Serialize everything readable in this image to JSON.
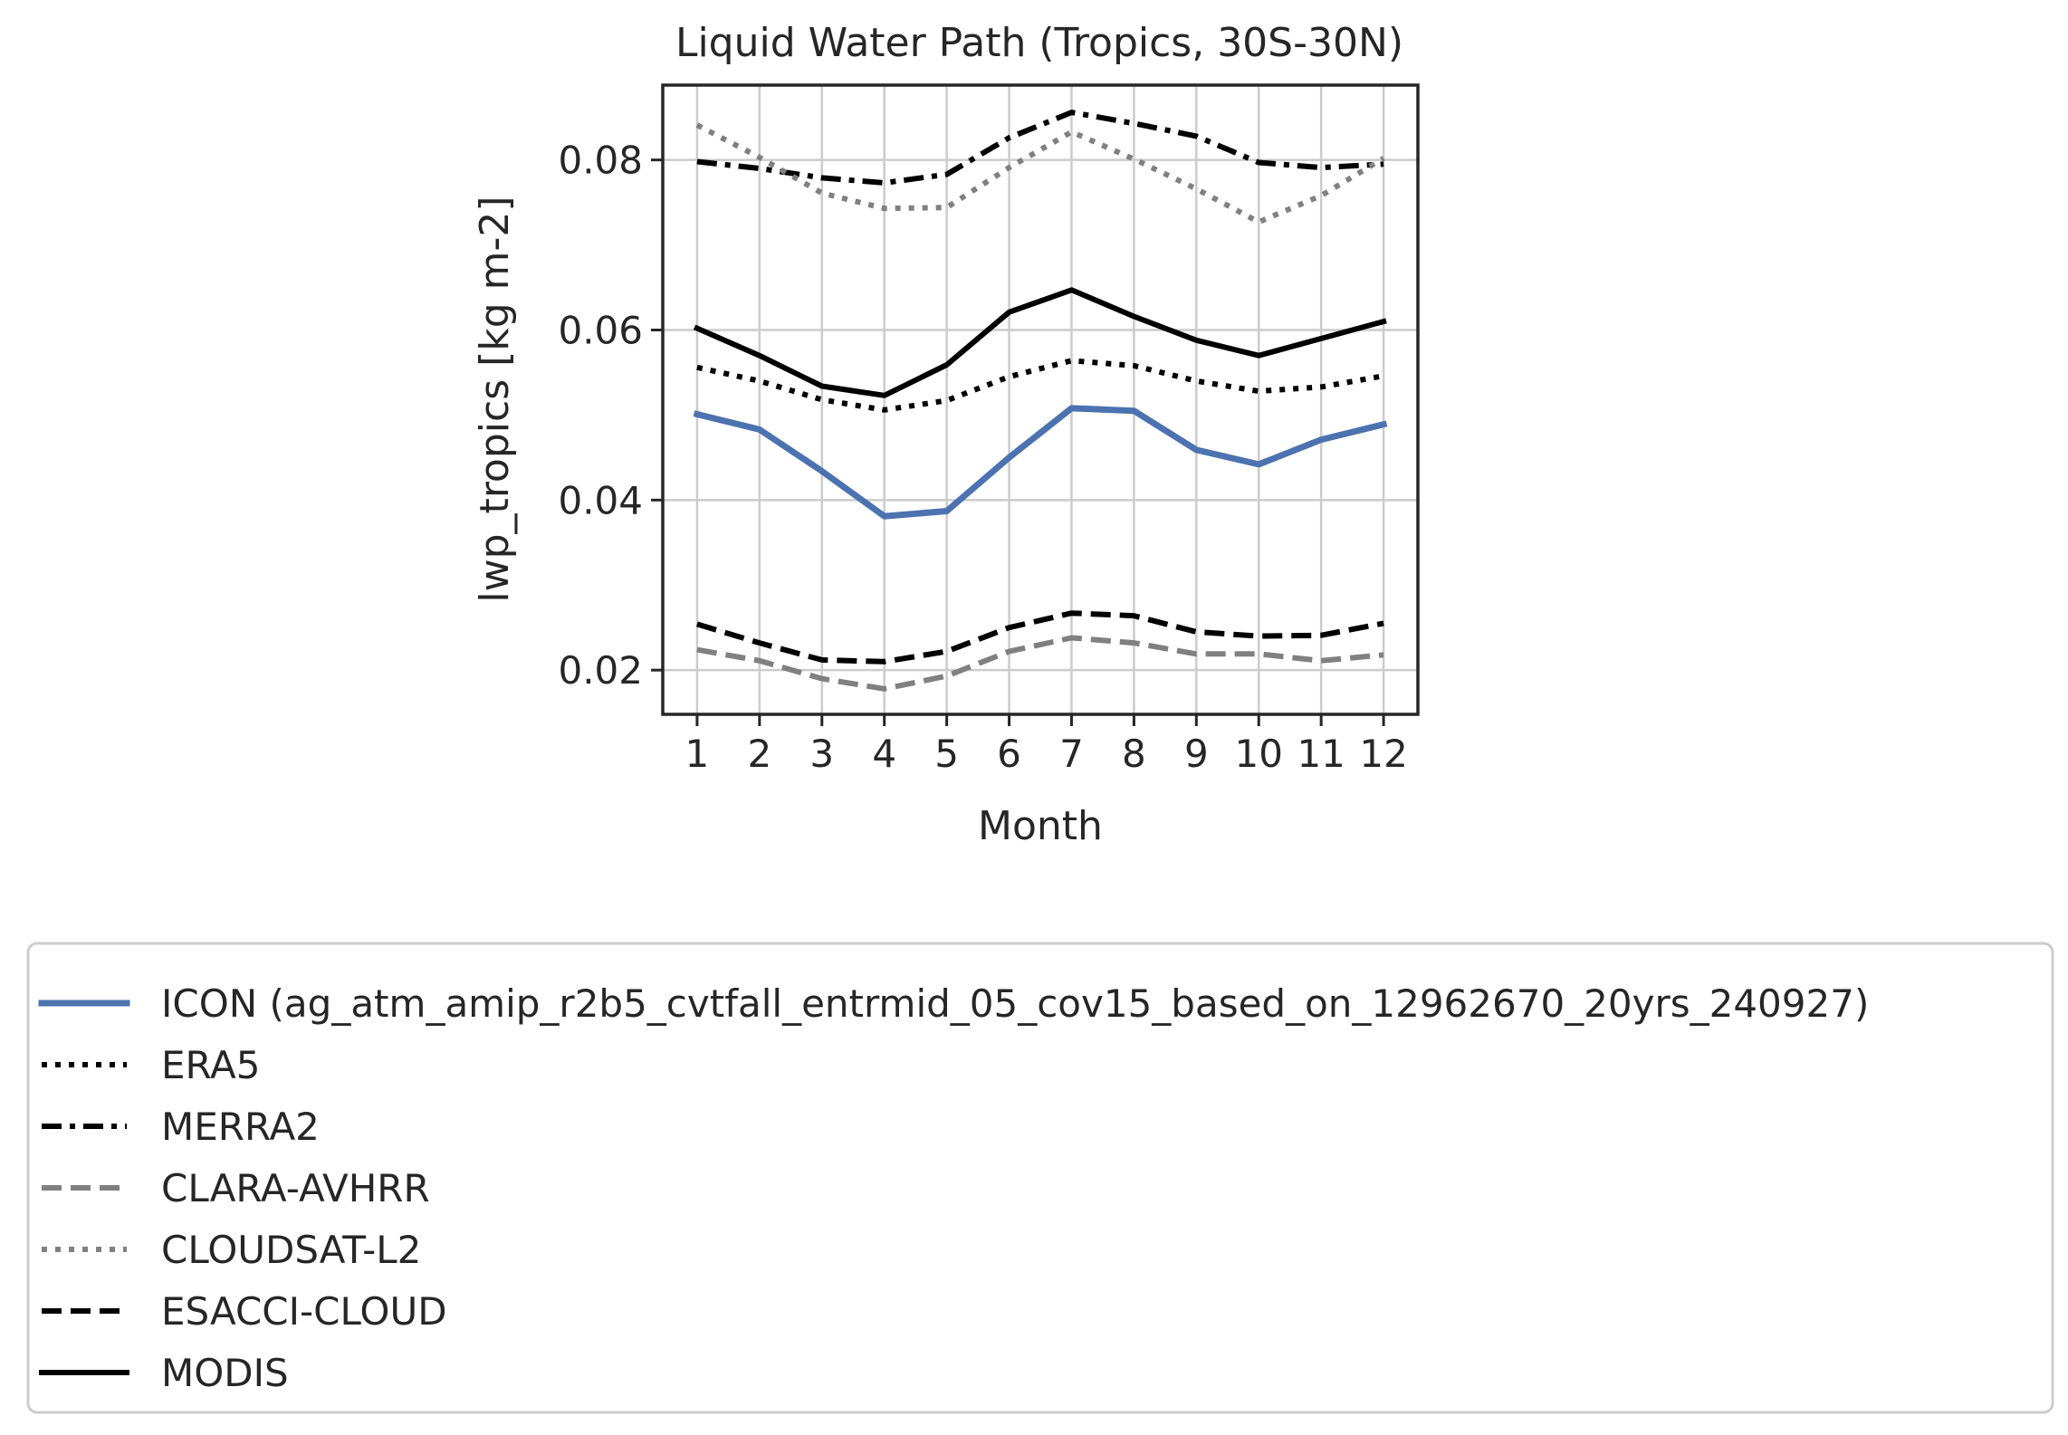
{
  "chart_data": {
    "type": "line",
    "title": "Liquid Water Path (Tropics, 30S-30N)",
    "xlabel": "Month",
    "ylabel": "lwp_tropics [kg m-2]",
    "x": [
      1,
      2,
      3,
      4,
      5,
      6,
      7,
      8,
      9,
      10,
      11,
      12
    ],
    "xticks": [
      "1",
      "2",
      "3",
      "4",
      "5",
      "6",
      "7",
      "8",
      "9",
      "10",
      "11",
      "12"
    ],
    "yticks": [
      "0.02",
      "0.04",
      "0.06",
      "0.08"
    ],
    "ytick_values": [
      0.02,
      0.04,
      0.06,
      0.08
    ],
    "xlim": [
      0.45,
      12.55
    ],
    "ylim": [
      0.0148,
      0.0888
    ],
    "grid": true,
    "legend_position": "bottom",
    "series": [
      {
        "name": "ICON (ag_atm_amip_r2b5_cvtfall_entrmid_05_cov15_based_on_12962670_20yrs_240927)",
        "color": "#4c72b0",
        "style": "solid-thick",
        "values": [
          0.0501,
          0.0483,
          0.0434,
          0.0381,
          0.0387,
          0.045,
          0.0508,
          0.0505,
          0.0459,
          0.0442,
          0.0471,
          0.0489
        ]
      },
      {
        "name": "ERA5",
        "color": "#000000",
        "style": "dotted",
        "values": [
          0.0556,
          0.054,
          0.0518,
          0.0506,
          0.0517,
          0.0545,
          0.0564,
          0.0558,
          0.054,
          0.0528,
          0.0533,
          0.0546
        ]
      },
      {
        "name": "MERRA2",
        "color": "#000000",
        "style": "dashdot",
        "values": [
          0.0798,
          0.079,
          0.0779,
          0.0773,
          0.0783,
          0.0826,
          0.0856,
          0.0843,
          0.0828,
          0.0797,
          0.0791,
          0.0795
        ]
      },
      {
        "name": "CLARA-AVHRR",
        "color": "#808080",
        "style": "dashed",
        "values": [
          0.0224,
          0.0211,
          0.019,
          0.0178,
          0.0193,
          0.0222,
          0.0238,
          0.0232,
          0.0219,
          0.0219,
          0.0211,
          0.0218
        ]
      },
      {
        "name": "CLOUDSAT-L2",
        "color": "#808080",
        "style": "dotted",
        "values": [
          0.0841,
          0.0803,
          0.0761,
          0.0743,
          0.0744,
          0.0791,
          0.0833,
          0.0801,
          0.0766,
          0.0727,
          0.0758,
          0.0802
        ]
      },
      {
        "name": "ESACCI-CLOUD",
        "color": "#000000",
        "style": "dashed",
        "values": [
          0.0254,
          0.0232,
          0.0212,
          0.021,
          0.0222,
          0.025,
          0.0267,
          0.0264,
          0.0245,
          0.024,
          0.0241,
          0.0255
        ]
      },
      {
        "name": "MODIS",
        "color": "#000000",
        "style": "solid",
        "values": [
          0.0602,
          0.057,
          0.0534,
          0.0523,
          0.0559,
          0.0621,
          0.0647,
          0.0616,
          0.0588,
          0.057,
          0.059,
          0.061
        ]
      }
    ]
  }
}
